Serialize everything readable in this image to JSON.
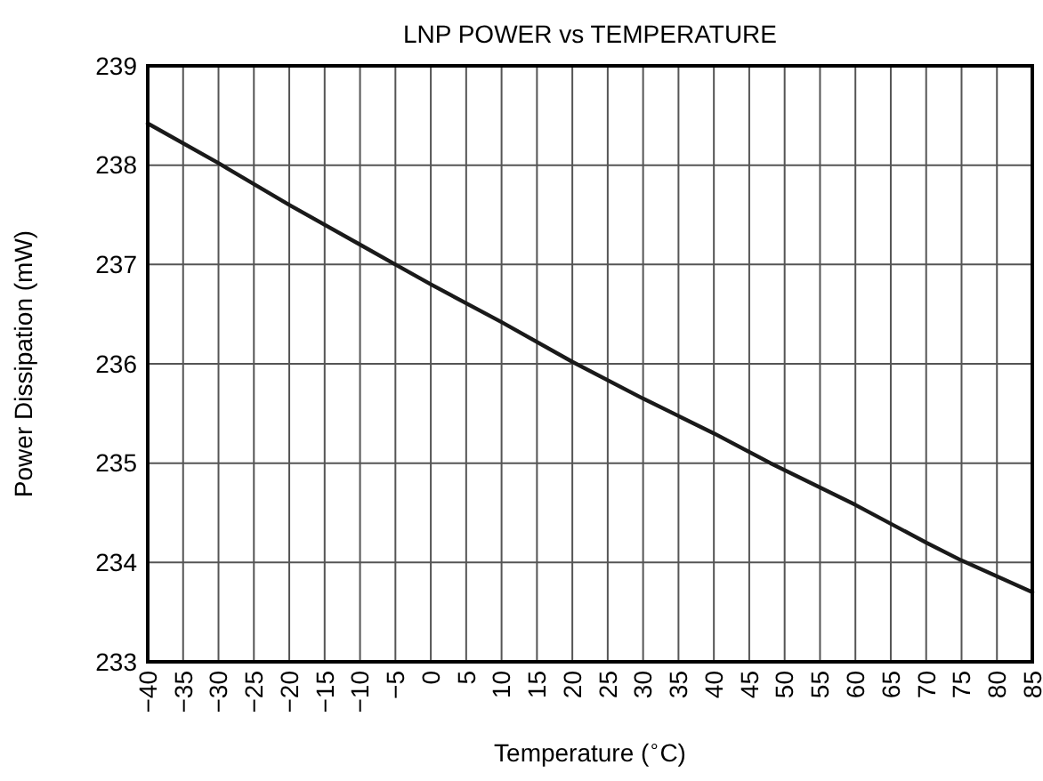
{
  "chart_data": {
    "type": "line",
    "title": "LNP POWER vs TEMPERATURE",
    "xlabel": "Temperature ($^{∘}$C)",
    "ylabel": "Power Dissipation (mW)",
    "x": [
      -40,
      -30,
      -20,
      -10,
      -5,
      0,
      10,
      20,
      30,
      40,
      48,
      60,
      70,
      75,
      85
    ],
    "series": [
      {
        "color": "#1a1a1a",
        "values": [
          238.42,
          238.02,
          237.6,
          237.2,
          237.0,
          236.8,
          236.42,
          236.02,
          235.65,
          235.3,
          235.0,
          234.58,
          234.2,
          234.02,
          233.7
        ]
      }
    ],
    "xlim": [
      -40,
      85
    ],
    "xticks": [
      -40,
      -35,
      -30,
      -25,
      -20,
      -15,
      -10,
      -5,
      0,
      5,
      10,
      15,
      20,
      25,
      30,
      35,
      40,
      45,
      50,
      55,
      60,
      65,
      70,
      75,
      80,
      85
    ],
    "ylim": [
      233,
      239
    ],
    "yticks": [
      233,
      234,
      235,
      236,
      237,
      238,
      239
    ],
    "grid": true,
    "marker": "none",
    "line_style": "solid"
  }
}
